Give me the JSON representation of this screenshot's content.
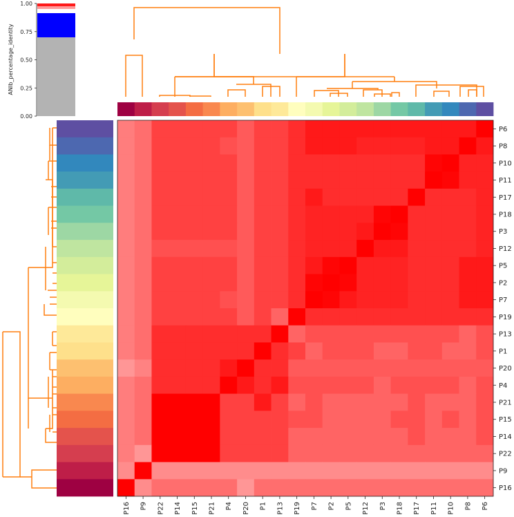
{
  "chart_data": {
    "type": "heatmap",
    "title": "",
    "colorbar_label": "ANIb_percentage_identity",
    "colorbar_ticks": [
      "0.00",
      "0.25",
      "0.50",
      "0.75",
      "1.00"
    ],
    "colorbar_range": [
      0,
      1
    ],
    "columns": [
      "P16",
      "P9",
      "P22",
      "P14",
      "P15",
      "P21",
      "P4",
      "P20",
      "P1",
      "P13",
      "P19",
      "P7",
      "P2",
      "P5",
      "P12",
      "P3",
      "P18",
      "P17",
      "P11",
      "P10",
      "P8",
      "P6"
    ],
    "rows": [
      "P6",
      "P8",
      "P10",
      "P11",
      "P17",
      "P18",
      "P3",
      "P12",
      "P5",
      "P2",
      "P7",
      "P19",
      "P13",
      "P1",
      "P20",
      "P4",
      "P21",
      "P15",
      "P14",
      "P22",
      "P9",
      "P16"
    ],
    "annotation_colors": [
      "#9e0142",
      "#be1e48",
      "#d53e4f",
      "#e4534c",
      "#f46d43",
      "#f9884f",
      "#fdae61",
      "#fdc070",
      "#fee08b",
      "#fee999",
      "#fffebe",
      "#f4fab0",
      "#e6f598",
      "#d3ed9b",
      "#bfe5a0",
      "#9dd7a4",
      "#74c8a5",
      "#5fb9a9",
      "#439bb5",
      "#3288bd",
      "#4d68b0",
      "#5e4fa2"
    ],
    "values": [
      [
        0.75,
        0.78,
        0.87,
        0.87,
        0.87,
        0.87,
        0.87,
        0.82,
        0.87,
        0.87,
        0.91,
        0.95,
        0.95,
        0.95,
        0.95,
        0.95,
        0.95,
        0.95,
        0.95,
        0.95,
        0.95,
        1.0
      ],
      [
        0.75,
        0.78,
        0.87,
        0.87,
        0.87,
        0.87,
        0.84,
        0.82,
        0.87,
        0.87,
        0.91,
        0.95,
        0.95,
        0.95,
        0.93,
        0.93,
        0.93,
        0.93,
        0.95,
        0.95,
        1.0,
        0.95
      ],
      [
        0.75,
        0.78,
        0.87,
        0.87,
        0.87,
        0.87,
        0.87,
        0.82,
        0.87,
        0.87,
        0.91,
        0.91,
        0.91,
        0.91,
        0.91,
        0.91,
        0.91,
        0.91,
        0.99,
        1.0,
        0.93,
        0.93
      ],
      [
        0.75,
        0.78,
        0.87,
        0.87,
        0.87,
        0.87,
        0.87,
        0.82,
        0.87,
        0.87,
        0.91,
        0.91,
        0.91,
        0.91,
        0.91,
        0.91,
        0.91,
        0.91,
        1.0,
        0.99,
        0.93,
        0.93
      ],
      [
        0.75,
        0.78,
        0.87,
        0.87,
        0.87,
        0.87,
        0.87,
        0.82,
        0.87,
        0.87,
        0.91,
        0.95,
        0.91,
        0.91,
        0.91,
        0.91,
        0.91,
        1.0,
        0.91,
        0.91,
        0.91,
        0.93
      ],
      [
        0.75,
        0.78,
        0.87,
        0.87,
        0.87,
        0.87,
        0.87,
        0.82,
        0.87,
        0.87,
        0.91,
        0.93,
        0.93,
        0.93,
        0.93,
        0.99,
        1.0,
        0.91,
        0.91,
        0.91,
        0.91,
        0.93
      ],
      [
        0.75,
        0.78,
        0.87,
        0.87,
        0.87,
        0.87,
        0.87,
        0.82,
        0.87,
        0.87,
        0.91,
        0.93,
        0.93,
        0.93,
        0.95,
        1.0,
        0.99,
        0.91,
        0.91,
        0.91,
        0.91,
        0.93
      ],
      [
        0.75,
        0.78,
        0.84,
        0.84,
        0.84,
        0.84,
        0.84,
        0.82,
        0.87,
        0.87,
        0.91,
        0.93,
        0.93,
        0.93,
        1.0,
        0.95,
        0.95,
        0.91,
        0.91,
        0.91,
        0.91,
        0.93
      ],
      [
        0.75,
        0.78,
        0.87,
        0.87,
        0.87,
        0.87,
        0.87,
        0.82,
        0.87,
        0.87,
        0.91,
        0.95,
        0.99,
        1.0,
        0.93,
        0.93,
        0.93,
        0.91,
        0.91,
        0.91,
        0.95,
        0.95
      ],
      [
        0.75,
        0.78,
        0.87,
        0.87,
        0.87,
        0.87,
        0.87,
        0.82,
        0.87,
        0.87,
        0.91,
        0.99,
        1.0,
        0.99,
        0.93,
        0.93,
        0.93,
        0.91,
        0.91,
        0.91,
        0.95,
        0.95
      ],
      [
        0.75,
        0.78,
        0.87,
        0.87,
        0.87,
        0.87,
        0.84,
        0.82,
        0.87,
        0.87,
        0.91,
        1.0,
        0.99,
        0.95,
        0.93,
        0.93,
        0.93,
        0.91,
        0.91,
        0.91,
        0.95,
        0.95
      ],
      [
        0.75,
        0.78,
        0.87,
        0.87,
        0.87,
        0.87,
        0.87,
        0.82,
        0.87,
        0.8,
        1.0,
        0.91,
        0.91,
        0.91,
        0.91,
        0.91,
        0.91,
        0.91,
        0.91,
        0.91,
        0.91,
        0.91
      ],
      [
        0.75,
        0.78,
        0.91,
        0.91,
        0.91,
        0.91,
        0.91,
        0.91,
        0.91,
        1.0,
        0.8,
        0.84,
        0.84,
        0.84,
        0.84,
        0.84,
        0.84,
        0.84,
        0.84,
        0.84,
        0.8,
        0.84
      ],
      [
        0.75,
        0.78,
        0.91,
        0.91,
        0.91,
        0.91,
        0.91,
        0.91,
        1.0,
        0.91,
        0.87,
        0.8,
        0.84,
        0.84,
        0.84,
        0.8,
        0.8,
        0.84,
        0.84,
        0.8,
        0.8,
        0.84
      ],
      [
        0.7,
        0.74,
        0.91,
        0.91,
        0.91,
        0.91,
        0.95,
        1.0,
        0.91,
        0.91,
        0.82,
        0.82,
        0.82,
        0.82,
        0.82,
        0.82,
        0.82,
        0.82,
        0.82,
        0.82,
        0.82,
        0.82
      ],
      [
        0.75,
        0.78,
        0.91,
        0.91,
        0.91,
        0.91,
        1.0,
        0.95,
        0.91,
        0.95,
        0.84,
        0.84,
        0.84,
        0.84,
        0.84,
        0.8,
        0.84,
        0.84,
        0.84,
        0.84,
        0.8,
        0.84
      ],
      [
        0.75,
        0.78,
        1.0,
        1.0,
        1.0,
        1.0,
        0.87,
        0.87,
        0.95,
        0.87,
        0.8,
        0.84,
        0.8,
        0.8,
        0.8,
        0.8,
        0.8,
        0.84,
        0.8,
        0.8,
        0.8,
        0.84
      ],
      [
        0.75,
        0.78,
        1.0,
        1.0,
        1.0,
        1.0,
        0.87,
        0.87,
        0.87,
        0.87,
        0.84,
        0.84,
        0.8,
        0.8,
        0.8,
        0.8,
        0.84,
        0.84,
        0.8,
        0.84,
        0.8,
        0.84
      ],
      [
        0.75,
        0.78,
        1.0,
        1.0,
        1.0,
        1.0,
        0.87,
        0.87,
        0.87,
        0.87,
        0.8,
        0.8,
        0.8,
        0.8,
        0.8,
        0.8,
        0.8,
        0.84,
        0.8,
        0.8,
        0.8,
        0.84
      ],
      [
        0.75,
        0.7,
        1.0,
        1.0,
        1.0,
        1.0,
        0.87,
        0.87,
        0.87,
        0.87,
        0.8,
        0.8,
        0.8,
        0.8,
        0.8,
        0.8,
        0.8,
        0.8,
        0.8,
        0.8,
        0.8,
        0.8
      ],
      [
        0.72,
        1.0,
        0.72,
        0.72,
        0.72,
        0.72,
        0.72,
        0.72,
        0.72,
        0.72,
        0.72,
        0.72,
        0.72,
        0.72,
        0.72,
        0.72,
        0.72,
        0.72,
        0.72,
        0.72,
        0.72,
        0.72
      ],
      [
        1.0,
        0.72,
        0.78,
        0.78,
        0.78,
        0.78,
        0.78,
        0.7,
        0.78,
        0.78,
        0.78,
        0.78,
        0.78,
        0.78,
        0.78,
        0.78,
        0.78,
        0.78,
        0.78,
        0.78,
        0.78,
        0.78
      ]
    ],
    "dendrogram_color": "#ff7f0e",
    "grid": false
  }
}
